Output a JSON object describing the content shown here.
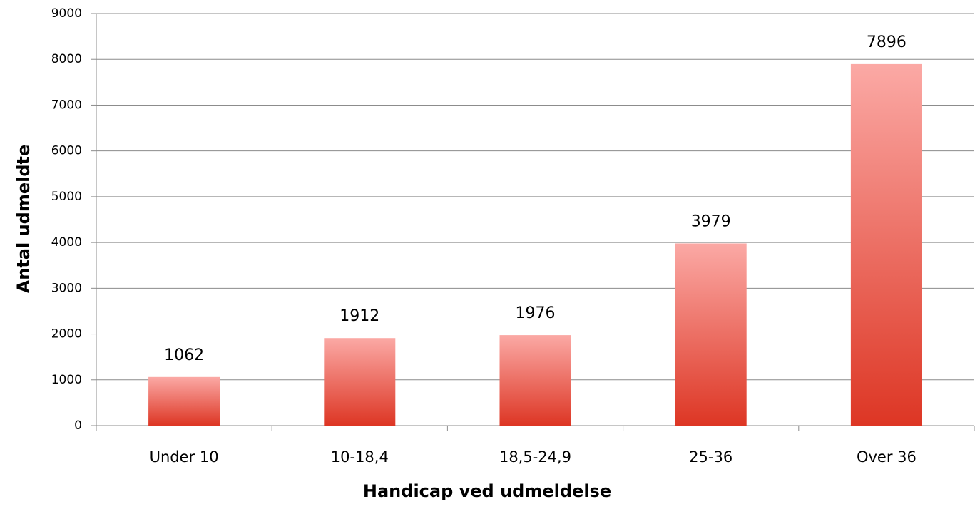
{
  "chart_data": {
    "type": "bar",
    "x_label": "Handicap ved udmeldelse",
    "y_label": "Antal udmeldte",
    "categories": [
      "Under 10",
      "10-18,4",
      "18,5-24,9",
      "25-36",
      "Over 36"
    ],
    "values": [
      1062,
      1912,
      1976,
      3979,
      7896
    ],
    "color": [
      "#fba9a5",
      "#dd3624"
    ],
    "ylim": [
      0,
      9000
    ],
    "yticks": [
      0,
      1000,
      2000,
      3000,
      4000,
      5000,
      6000,
      7000,
      8000,
      9000
    ],
    "grid": true
  }
}
